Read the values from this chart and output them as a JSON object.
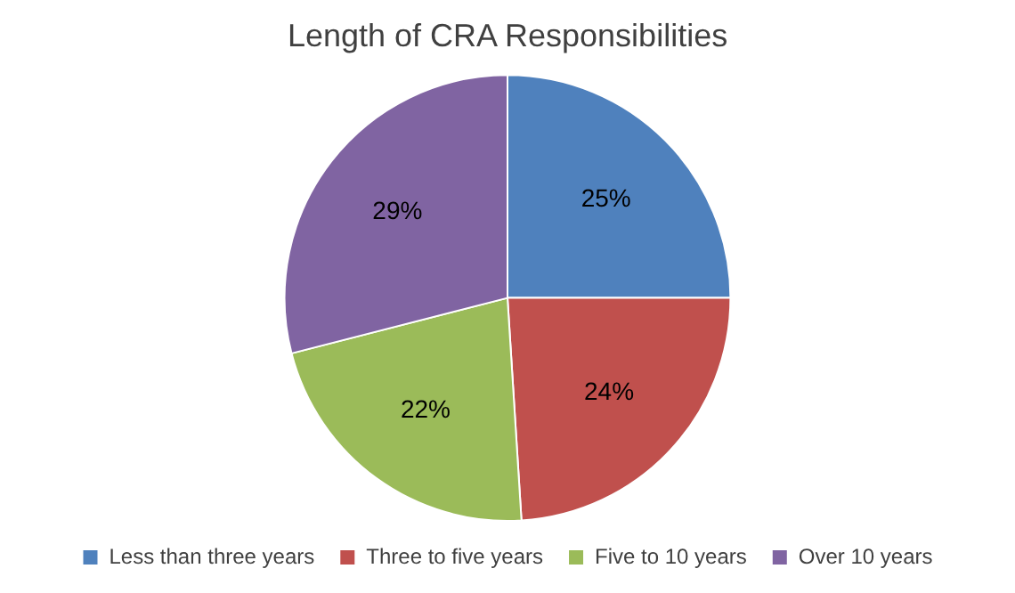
{
  "chart_data": {
    "type": "pie",
    "title": "Length of CRA Responsibilities",
    "categories": [
      "Less than three years",
      "Three to five years",
      "Five to 10 years",
      "Over 10 years"
    ],
    "values": [
      25,
      24,
      22,
      29
    ],
    "colors": [
      "#4f81bd",
      "#c0504d",
      "#9bbb59",
      "#8064a2"
    ],
    "value_labels": [
      "25%",
      "24%",
      "22%",
      "29%"
    ],
    "legend": "bottom"
  }
}
